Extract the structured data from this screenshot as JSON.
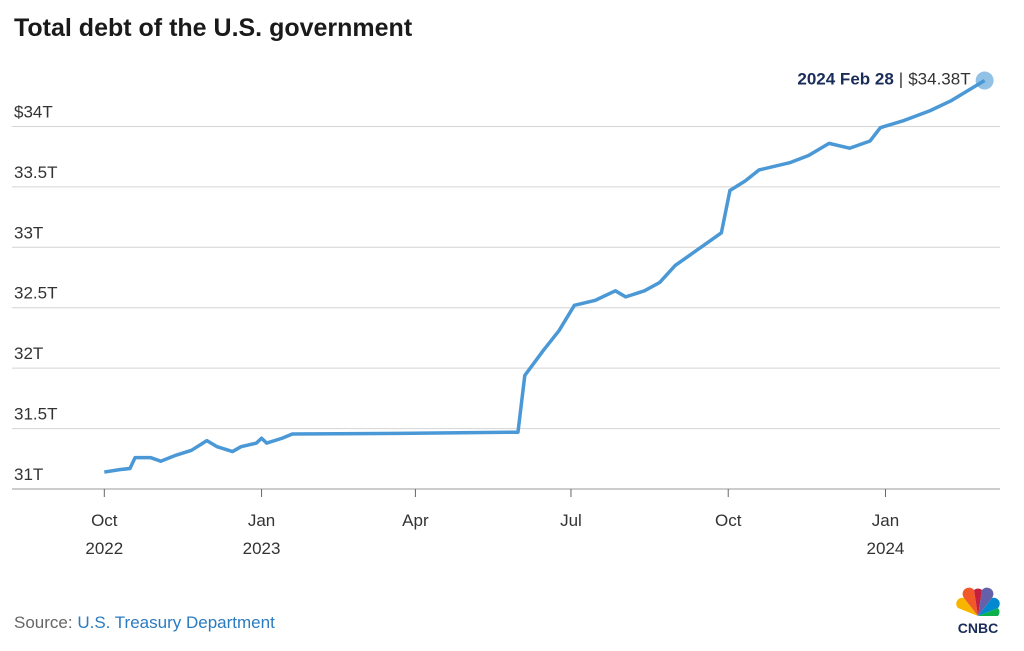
{
  "chart_data": {
    "type": "line",
    "title": "Total debt of the U.S. government",
    "source_prefix": "Source:",
    "source": "U.S. Treasury Department",
    "logo": "CNBC",
    "color": "#4a98d6",
    "grid": true,
    "annotation": {
      "date_label": "2024 Feb 28",
      "separator": "|",
      "value_label": "$34.38T"
    },
    "xlim": [
      "2022-08-08",
      "2024-03-08"
    ],
    "xticks": [
      {
        "value": "2022-10-01",
        "label": "Oct 2022"
      },
      {
        "value": "2023-01-01",
        "label": "Jan 2023"
      },
      {
        "value": "2023-04-01",
        "label": "Apr"
      },
      {
        "value": "2023-07-01",
        "label": "Jul"
      },
      {
        "value": "2023-10-01",
        "label": "Oct"
      },
      {
        "value": "2024-01-01",
        "label": "Jan 2024"
      }
    ],
    "ylim": [
      31,
      34.55
    ],
    "yticks": [
      {
        "value": 31,
        "label": "31T"
      },
      {
        "value": 31.5,
        "label": "31.5T"
      },
      {
        "value": 32,
        "label": "32T"
      },
      {
        "value": 32.5,
        "label": "32.5T"
      },
      {
        "value": 33,
        "label": "33T"
      },
      {
        "value": 33.5,
        "label": "33.5T"
      },
      {
        "value": 34,
        "label": "$34T"
      }
    ],
    "x": [
      "2022-10-01",
      "2022-10-10",
      "2022-10-16",
      "2022-10-19",
      "2022-10-28",
      "2022-11-03",
      "2022-11-12",
      "2022-11-21",
      "2022-11-30",
      "2022-12-06",
      "2022-12-15",
      "2022-12-20",
      "2022-12-29",
      "2023-01-01",
      "2023-01-04",
      "2023-01-13",
      "2023-01-19",
      "2023-03-23",
      "2023-05-31",
      "2023-06-04",
      "2023-06-15",
      "2023-06-24",
      "2023-07-03",
      "2023-07-15",
      "2023-07-27",
      "2023-08-02",
      "2023-08-13",
      "2023-08-22",
      "2023-08-31",
      "2023-09-08",
      "2023-09-17",
      "2023-09-27",
      "2023-10-02",
      "2023-10-11",
      "2023-10-19",
      "2023-11-06",
      "2023-11-17",
      "2023-11-29",
      "2023-12-11",
      "2023-12-23",
      "2023-12-29",
      "2024-01-12",
      "2024-01-27",
      "2024-02-08",
      "2024-02-28"
    ],
    "values": [
      31.14,
      31.16,
      31.17,
      31.26,
      31.26,
      31.23,
      31.28,
      31.32,
      31.4,
      31.35,
      31.31,
      31.35,
      31.38,
      31.42,
      31.38,
      31.42,
      31.455,
      31.46,
      31.47,
      31.94,
      32.15,
      32.31,
      32.52,
      32.56,
      32.64,
      32.59,
      32.64,
      32.71,
      32.85,
      32.93,
      33.02,
      33.12,
      33.47,
      33.55,
      33.64,
      33.7,
      33.76,
      33.86,
      33.82,
      33.88,
      33.99,
      34.05,
      34.13,
      34.21,
      34.38
    ]
  }
}
